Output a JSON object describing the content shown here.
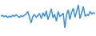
{
  "chart_data": {
    "type": "line",
    "color": "#3c8fd8",
    "x": [
      0,
      1,
      2,
      3,
      4,
      5,
      6,
      7,
      8,
      9,
      10,
      11,
      12,
      13,
      14,
      15,
      16,
      17,
      18,
      19,
      20,
      21,
      22,
      23,
      24,
      25,
      26,
      27,
      28,
      29,
      30,
      31,
      32,
      33,
      34,
      35,
      36,
      37,
      38,
      39,
      40,
      41,
      42,
      43,
      44,
      45,
      46,
      47,
      48,
      49,
      50,
      51,
      52,
      53,
      54,
      55,
      56
    ],
    "values": [
      55,
      58,
      54,
      57,
      52,
      56,
      53,
      58,
      55,
      60,
      56,
      52,
      57,
      54,
      59,
      62,
      70,
      50,
      35,
      55,
      60,
      52,
      58,
      63,
      48,
      66,
      55,
      72,
      45,
      60,
      78,
      50,
      62,
      40,
      70,
      55,
      58,
      65,
      20,
      60,
      75,
      45,
      68,
      80,
      52,
      70,
      90,
      48,
      65,
      85,
      55,
      60,
      58,
      70,
      62,
      66,
      64
    ],
    "xlim": [
      0,
      56
    ],
    "ylim": [
      0,
      100
    ],
    "grid": false,
    "tick_labels": false
  }
}
